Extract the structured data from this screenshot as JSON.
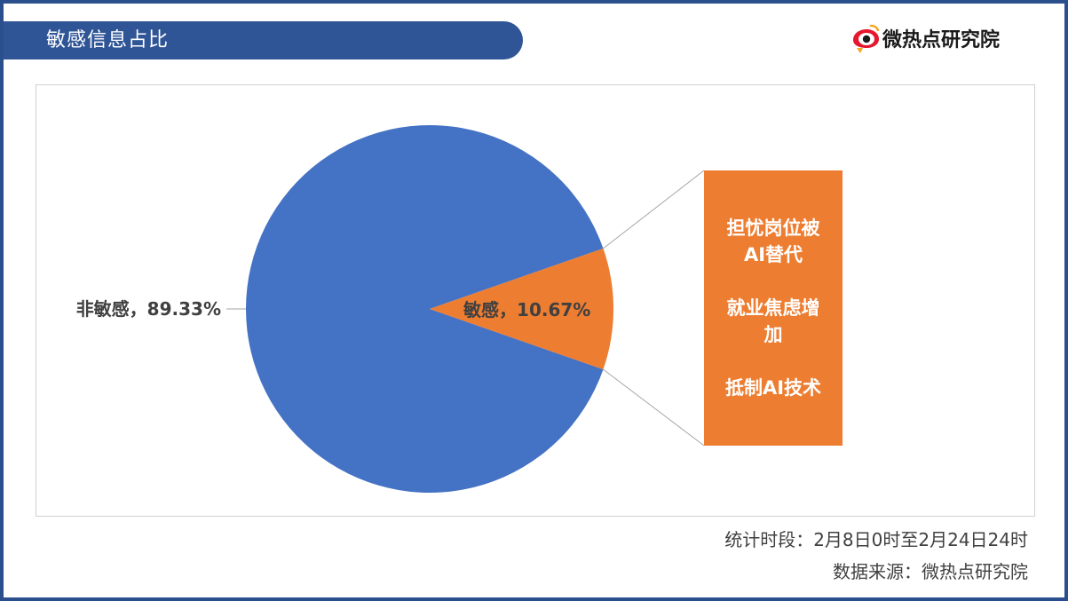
{
  "header": {
    "title": "敏感信息占比",
    "logo_text": "微热点研究院"
  },
  "chart_data": {
    "type": "pie",
    "slices": [
      {
        "name": "非敏感",
        "value": 89.33,
        "label": "非敏感，89.33%",
        "color": "#4472c4"
      },
      {
        "name": "敏感",
        "value": 10.67,
        "label": "敏感，10.67%",
        "color": "#ed7d31"
      }
    ],
    "callout": {
      "items": [
        "担忧岗位被AI替代",
        "就业焦虑增加",
        "抵制AI技术"
      ],
      "color": "#ed7d31"
    }
  },
  "footer": {
    "period": "统计时段：2月8日0时至2月24日24时",
    "source": "数据来源：微热点研究院"
  }
}
